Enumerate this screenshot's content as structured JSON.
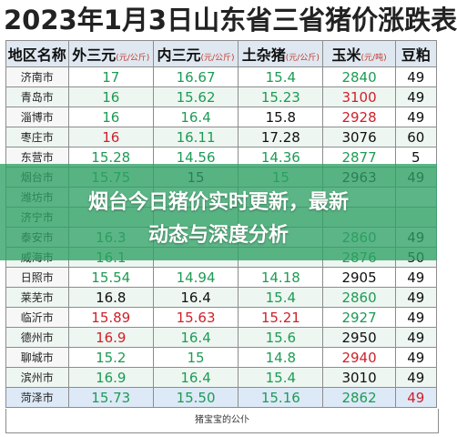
{
  "title": "2023年1月3日山东省三省猪价涨跌表",
  "headers": [
    {
      "name": "地区名称",
      "unit": ""
    },
    {
      "name": "外三元",
      "unit": "(元/公斤)"
    },
    {
      "name": "内三元",
      "unit": "(元/公斤)"
    },
    {
      "name": "土杂猪",
      "unit": "(元/公斤)"
    },
    {
      "name": "玉米",
      "unit": "(元/吨)"
    },
    {
      "name": "豆粕",
      "unit": ""
    }
  ],
  "rows": [
    {
      "region": "济南市",
      "cells": [
        [
          "17",
          "green"
        ],
        [
          "16.67",
          "green"
        ],
        [
          "15.4",
          "green"
        ],
        [
          "2840",
          "green"
        ],
        [
          "49",
          "black"
        ]
      ]
    },
    {
      "region": "青岛市",
      "cells": [
        [
          "16",
          "green"
        ],
        [
          "15.62",
          "green"
        ],
        [
          "15.23",
          "green"
        ],
        [
          "3100",
          "red"
        ],
        [
          "49",
          "black"
        ]
      ]
    },
    {
      "region": "淄博市",
      "cells": [
        [
          "16",
          "green"
        ],
        [
          "16.4",
          "green"
        ],
        [
          "15.8",
          "black"
        ],
        [
          "2928",
          "red"
        ],
        [
          "49",
          "black"
        ]
      ]
    },
    {
      "region": "枣庄市",
      "cells": [
        [
          "16",
          "red"
        ],
        [
          "16.11",
          "green"
        ],
        [
          "17.28",
          "black"
        ],
        [
          "3076",
          "black"
        ],
        [
          "60",
          "black"
        ]
      ]
    },
    {
      "region": "东营市",
      "cells": [
        [
          "15.28",
          "green"
        ],
        [
          "14.56",
          "green"
        ],
        [
          "14.36",
          "green"
        ],
        [
          "2877",
          "green"
        ],
        [
          "5",
          "black"
        ]
      ]
    },
    {
      "region": "烟台市",
      "cells": [
        [
          "15.75",
          "green"
        ],
        [
          "15",
          "black"
        ],
        [
          "15",
          "green"
        ],
        [
          "2963",
          "black"
        ],
        [
          "49",
          "black"
        ]
      ]
    },
    {
      "region": "潍坊市",
      "cells": [
        [
          "",
          "green"
        ],
        [
          "",
          "green"
        ],
        [
          "",
          "green"
        ],
        [
          "",
          "black"
        ],
        [
          "",
          "black"
        ]
      ]
    },
    {
      "region": "济宁市",
      "cells": [
        [
          "",
          "green"
        ],
        [
          "",
          "green"
        ],
        [
          "",
          "green"
        ],
        [
          "",
          "green"
        ],
        [
          "",
          "black"
        ]
      ]
    },
    {
      "region": "泰安市",
      "cells": [
        [
          "16.3",
          "green"
        ],
        [
          "",
          "green"
        ],
        [
          "",
          "green"
        ],
        [
          "2860",
          "green"
        ],
        [
          "49",
          "black"
        ]
      ]
    },
    {
      "region": "威海市",
      "cells": [
        [
          "16.1",
          "green"
        ],
        [
          "",
          "green"
        ],
        [
          "",
          "green"
        ],
        [
          "2876",
          "green"
        ],
        [
          "50",
          "black"
        ]
      ]
    },
    {
      "region": "日照市",
      "cells": [
        [
          "15.54",
          "green"
        ],
        [
          "14.94",
          "green"
        ],
        [
          "14.18",
          "green"
        ],
        [
          "2905",
          "black"
        ],
        [
          "49",
          "black"
        ]
      ]
    },
    {
      "region": "莱芜市",
      "cells": [
        [
          "16.8",
          "black"
        ],
        [
          "16.4",
          "black"
        ],
        [
          "15.4",
          "green"
        ],
        [
          "2860",
          "green"
        ],
        [
          "49",
          "black"
        ]
      ]
    },
    {
      "region": "临沂市",
      "cells": [
        [
          "15.89",
          "red"
        ],
        [
          "15.63",
          "red"
        ],
        [
          "15.21",
          "red"
        ],
        [
          "2927",
          "green"
        ],
        [
          "49",
          "black"
        ]
      ]
    },
    {
      "region": "德州市",
      "cells": [
        [
          "16.9",
          "red"
        ],
        [
          "16.4",
          "green"
        ],
        [
          "15.6",
          "green"
        ],
        [
          "2950",
          "black"
        ],
        [
          "49",
          "black"
        ]
      ]
    },
    {
      "region": "聊城市",
      "cells": [
        [
          "15.2",
          "green"
        ],
        [
          "15",
          "green"
        ],
        [
          "14.8",
          "green"
        ],
        [
          "2940",
          "red"
        ],
        [
          "49",
          "black"
        ]
      ]
    },
    {
      "region": "滨州市",
      "cells": [
        [
          "16.9",
          "green"
        ],
        [
          "16.4",
          "green"
        ],
        [
          "15.4",
          "green"
        ],
        [
          "3010",
          "black"
        ],
        [
          "49",
          "black"
        ]
      ]
    },
    {
      "region": "菏泽市",
      "cells": [
        [
          "15.73",
          "green"
        ],
        [
          "15.50",
          "green"
        ],
        [
          "15.16",
          "green"
        ],
        [
          "2862",
          "green"
        ],
        [
          "49",
          "red"
        ]
      ]
    }
  ],
  "footer": "猪宝宝的公仆",
  "overlay": {
    "line1": "烟台今日猪价实时更新，最新",
    "line2": "动态与深度分析"
  },
  "colors": {
    "green": "#1e9b55",
    "red": "#d0212a",
    "black": "#111111",
    "overlay": "#2ea064",
    "header_bg": "#dfe8f1"
  }
}
